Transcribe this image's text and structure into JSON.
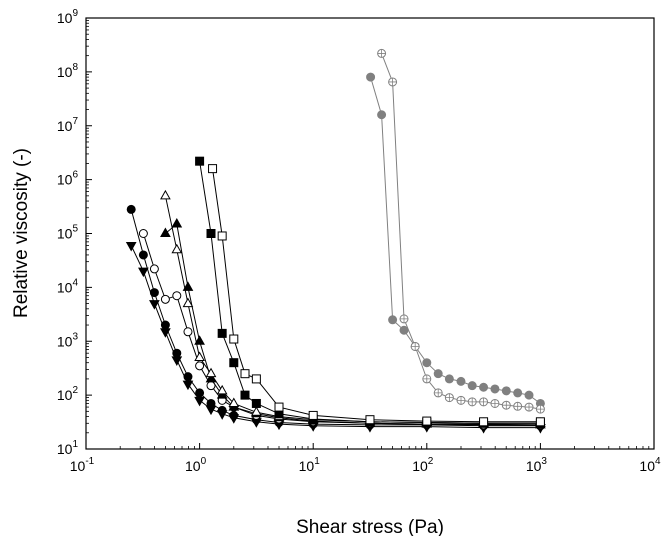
{
  "chart_data": {
    "type": "scatter",
    "xlabel": "Shear stress (Pa)",
    "ylabel": "Relative viscosity (-)",
    "x_scale": "log",
    "y_scale": "log",
    "xlim": [
      0.1,
      10000
    ],
    "ylim": [
      10,
      1000000000
    ],
    "grid": false,
    "x_ticks": [
      {
        "base": "10",
        "exp": "-1",
        "value": 0.1
      },
      {
        "base": "10",
        "exp": "0",
        "value": 1
      },
      {
        "base": "10",
        "exp": "1",
        "value": 10
      },
      {
        "base": "10",
        "exp": "2",
        "value": 100
      },
      {
        "base": "10",
        "exp": "3",
        "value": 1000
      },
      {
        "base": "10",
        "exp": "4",
        "value": 10000
      }
    ],
    "y_ticks": [
      {
        "base": "10",
        "exp": "1",
        "value": 10
      },
      {
        "base": "10",
        "exp": "2",
        "value": 100
      },
      {
        "base": "10",
        "exp": "3",
        "value": 1000
      },
      {
        "base": "10",
        "exp": "4",
        "value": 10000
      },
      {
        "base": "10",
        "exp": "5",
        "value": 100000
      },
      {
        "base": "10",
        "exp": "6",
        "value": 1000000
      },
      {
        "base": "10",
        "exp": "7",
        "value": 10000000
      },
      {
        "base": "10",
        "exp": "8",
        "value": 100000000
      },
      {
        "base": "10",
        "exp": "9",
        "value": 1000000000
      }
    ],
    "series": [
      {
        "marker": "down-triangle",
        "color": "#000000",
        "filled": true,
        "x": [
          0.25,
          0.32,
          0.4,
          0.5,
          0.63,
          0.79,
          1.0,
          1.26,
          1.58,
          2.0,
          3.16,
          5.0,
          10,
          31.6,
          100,
          316,
          1000
        ],
        "y": [
          60000,
          20000,
          5000,
          1500,
          450,
          160,
          80,
          55,
          45,
          38,
          32,
          29,
          27,
          26,
          26,
          25,
          25
        ]
      },
      {
        "marker": "circle",
        "color": "#000000",
        "filled": true,
        "x": [
          0.25,
          0.32,
          0.4,
          0.5,
          0.63,
          0.79,
          1.0,
          1.26,
          1.58,
          2.0,
          3.16,
          5.0,
          10,
          31.6,
          100,
          316,
          1000
        ],
        "y": [
          280000,
          40000,
          8000,
          2000,
          600,
          220,
          110,
          70,
          52,
          42,
          35,
          31,
          29,
          28,
          28,
          27,
          27
        ]
      },
      {
        "marker": "circle",
        "color": "#000000",
        "filled": false,
        "x": [
          0.32,
          0.4,
          0.5,
          0.63,
          0.79,
          1.0,
          1.26,
          1.58,
          2.0,
          3.16,
          5.0,
          10,
          31.6,
          100,
          316,
          1000
        ],
        "y": [
          100000,
          22000,
          6000,
          7000,
          1500,
          350,
          150,
          80,
          60,
          42,
          36,
          32,
          30,
          29,
          28,
          28
        ]
      },
      {
        "marker": "triangle",
        "color": "#000000",
        "filled": true,
        "x": [
          0.5,
          0.63,
          0.79,
          1.0,
          1.26,
          1.58,
          2.0,
          3.16,
          5.0,
          10,
          31.6,
          100,
          316,
          1000
        ],
        "y": [
          100000,
          150000,
          10000,
          1000,
          200,
          100,
          60,
          45,
          38,
          33,
          30,
          29,
          29,
          28
        ]
      },
      {
        "marker": "triangle",
        "color": "#000000",
        "filled": false,
        "x": [
          0.5,
          0.63,
          0.79,
          1.0,
          1.26,
          1.58,
          2.0,
          3.16,
          5.0,
          10,
          31.6,
          100,
          316,
          1000
        ],
        "y": [
          500000,
          50000,
          5000,
          500,
          250,
          120,
          70,
          48,
          40,
          35,
          32,
          31,
          30,
          30
        ]
      },
      {
        "marker": "square",
        "color": "#000000",
        "filled": true,
        "x": [
          1.0,
          1.26,
          1.58,
          2.0,
          2.51,
          3.16,
          5.0,
          10,
          31.6,
          100,
          316,
          1000
        ],
        "y": [
          2200000,
          100000,
          1400,
          400,
          100,
          70,
          45,
          36,
          32,
          31,
          30,
          30
        ]
      },
      {
        "marker": "square",
        "color": "#000000",
        "filled": false,
        "x": [
          1.3,
          1.58,
          2.0,
          2.51,
          3.16,
          5.0,
          10,
          31.6,
          100,
          316,
          1000
        ],
        "y": [
          1600000,
          90000,
          1100,
          250,
          200,
          60,
          42,
          35,
          33,
          32,
          32
        ]
      },
      {
        "marker": "circle",
        "color": "#808080",
        "filled": true,
        "x": [
          32,
          40,
          50,
          63,
          79,
          100,
          126,
          158,
          200,
          251,
          316,
          398,
          501,
          631,
          794,
          1000
        ],
        "y": [
          80000000,
          16000000,
          2500,
          1600,
          800,
          400,
          250,
          200,
          180,
          150,
          140,
          130,
          120,
          110,
          100,
          70
        ]
      },
      {
        "marker": "crossed-circle",
        "color": "#808080",
        "filled": false,
        "x": [
          40,
          50,
          63,
          79,
          100,
          126,
          158,
          200,
          251,
          316,
          398,
          501,
          631,
          794,
          1000
        ],
        "y": [
          220000000,
          65000000,
          2600,
          800,
          200,
          110,
          90,
          80,
          75,
          75,
          70,
          65,
          62,
          60,
          55
        ]
      }
    ]
  }
}
